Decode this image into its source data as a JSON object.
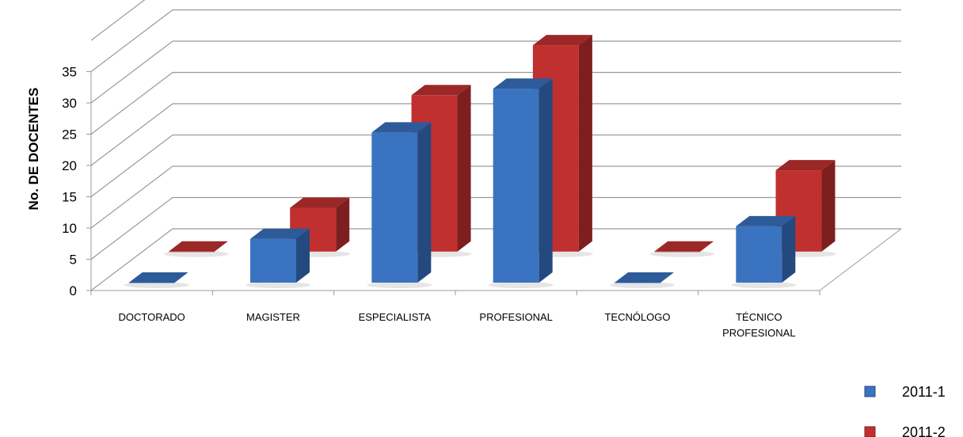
{
  "chart_data": {
    "type": "bar",
    "style": "3d-clustered",
    "categories": [
      "DOCTORADO",
      "MAGISTER",
      "ESPECIALISTA",
      "PROFESIONAL",
      "TECNÓLOGO",
      "TÉCNICO PROFESIONAL"
    ],
    "category_lines": [
      [
        "DOCTORADO"
      ],
      [
        "MAGISTER"
      ],
      [
        "ESPECIALISTA"
      ],
      [
        "PROFESIONAL"
      ],
      [
        "TECNÓLOGO"
      ],
      [
        "TÉCNICO",
        "PROFESIONAL"
      ]
    ],
    "series": [
      {
        "name": "2011-1",
        "values": [
          0,
          7,
          24,
          31,
          0,
          9
        ],
        "color": "#3a73c0",
        "side_color": "#24497f",
        "top_color": "#2d5a99"
      },
      {
        "name": "2011-2",
        "values": [
          0,
          7,
          25,
          33,
          0,
          13
        ],
        "color": "#c0302f",
        "side_color": "#7e1f1f",
        "top_color": "#9b2727"
      }
    ],
    "ylabel": "No. DE DOCENTES",
    "xlabel": "",
    "ylim": [
      0,
      35
    ],
    "yticks": [
      0,
      5,
      10,
      15,
      20,
      25,
      30,
      35
    ],
    "grid": true,
    "legend_position": "right"
  }
}
